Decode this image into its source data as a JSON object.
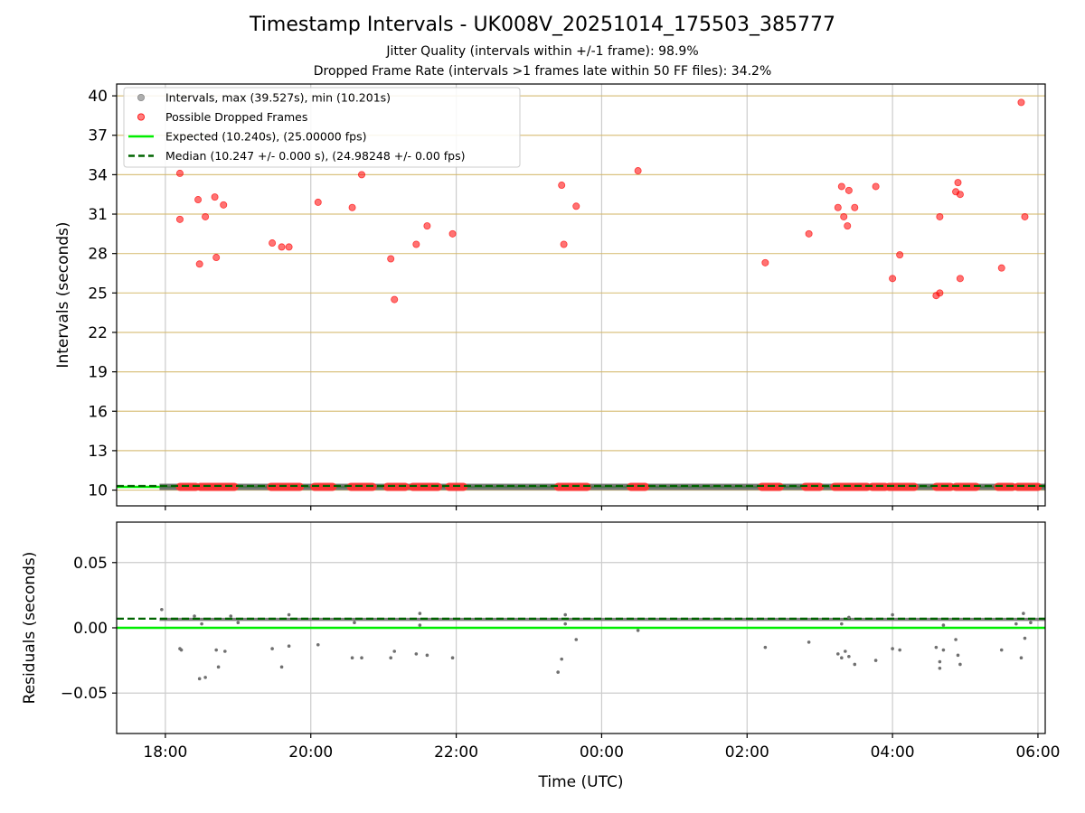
{
  "chart_data": {
    "title": "Timestamp Intervals - UK008V_20251014_175503_385777",
    "subtitle_1": "Jitter Quality (intervals within +/-1 frame): 98.9%",
    "subtitle_2": "Dropped Frame Rate (intervals >1 frames late within 50 FF files): 34.2%",
    "xlabel": "Time (UTC)",
    "x_ticks": [
      "18:00",
      "20:00",
      "22:00",
      "00:00",
      "02:00",
      "04:00",
      "06:00"
    ],
    "x_tick_hours": [
      0,
      2,
      4,
      6,
      8,
      10,
      12
    ],
    "x_range_hours": [
      -0.67,
      12.1
    ],
    "panels": [
      {
        "type": "scatter",
        "ylabel": "Intervals (seconds)",
        "ylim": [
          8.8,
          40.9
        ],
        "y_ticks": [
          10,
          13,
          16,
          19,
          22,
          25,
          28,
          31,
          34,
          37,
          40
        ],
        "legend": {
          "position": "upper-left",
          "entries": [
            {
              "label": "Intervals, max (39.527s), min (10.201s)",
              "marker": "circle",
              "color": "#808080"
            },
            {
              "label": "Possible Dropped Frames",
              "marker": "circle",
              "color": "#ff0000"
            },
            {
              "label": "Expected (10.240s), (25.00000 fps)",
              "line": "solid",
              "color": "#00ee00"
            },
            {
              "label": "Median (10.247 +/- 0.000 s), (24.98248 +/- 0.00 fps)",
              "line": "dashed",
              "color": "#006400"
            }
          ]
        },
        "series": [
          {
            "name": "Expected",
            "type": "hline",
            "value": 10.24,
            "color": "#00ee00"
          },
          {
            "name": "Median",
            "type": "hline",
            "value": 10.247,
            "color": "#006400"
          },
          {
            "name": "Intervals",
            "type": "band",
            "value": 10.247,
            "x_range": [
              -0.08,
              12.1
            ],
            "color": "#606060"
          },
          {
            "name": "Possible Dropped Frames",
            "type": "scatter",
            "color": "#ff0000",
            "points": [
              [
                0.2,
                30.6
              ],
              [
                0.2,
                34.1
              ],
              [
                0.45,
                32.1
              ],
              [
                0.47,
                27.2
              ],
              [
                0.55,
                30.8
              ],
              [
                0.68,
                32.3
              ],
              [
                0.7,
                27.7
              ],
              [
                0.8,
                31.7
              ],
              [
                1.47,
                28.8
              ],
              [
                1.6,
                28.5
              ],
              [
                1.7,
                28.5
              ],
              [
                2.1,
                31.9
              ],
              [
                2.57,
                31.5
              ],
              [
                2.7,
                34.0
              ],
              [
                3.1,
                27.6
              ],
              [
                3.15,
                24.5
              ],
              [
                3.45,
                28.7
              ],
              [
                3.6,
                30.1
              ],
              [
                3.95,
                29.5
              ],
              [
                5.45,
                33.2
              ],
              [
                5.48,
                28.7
              ],
              [
                5.65,
                31.6
              ],
              [
                6.5,
                34.3
              ],
              [
                8.25,
                27.3
              ],
              [
                8.85,
                29.5
              ],
              [
                9.25,
                31.5
              ],
              [
                9.3,
                33.1
              ],
              [
                9.33,
                30.8
              ],
              [
                9.38,
                30.1
              ],
              [
                9.4,
                32.8
              ],
              [
                9.48,
                31.5
              ],
              [
                9.77,
                33.1
              ],
              [
                10.0,
                26.1
              ],
              [
                10.1,
                27.9
              ],
              [
                10.6,
                24.8
              ],
              [
                10.65,
                30.8
              ],
              [
                10.65,
                25.0
              ],
              [
                10.87,
                32.7
              ],
              [
                10.9,
                33.4
              ],
              [
                10.93,
                32.5
              ],
              [
                10.93,
                26.1
              ],
              [
                11.5,
                26.9
              ],
              [
                11.77,
                39.5
              ],
              [
                11.82,
                30.8
              ]
            ],
            "baseline_clusters": [
              [
                0.2,
                0.42
              ],
              [
                0.48,
                0.95
              ],
              [
                1.45,
                1.85
              ],
              [
                2.05,
                2.3
              ],
              [
                2.55,
                2.85
              ],
              [
                3.05,
                3.3
              ],
              [
                3.4,
                3.75
              ],
              [
                3.9,
                4.1
              ],
              [
                5.4,
                5.8
              ],
              [
                6.4,
                6.6
              ],
              [
                8.2,
                8.45
              ],
              [
                8.8,
                9.0
              ],
              [
                9.2,
                9.65
              ],
              [
                9.72,
                9.9
              ],
              [
                9.95,
                10.3
              ],
              [
                10.6,
                10.8
              ],
              [
                10.87,
                11.15
              ],
              [
                11.45,
                11.65
              ],
              [
                11.72,
                12.0
              ]
            ]
          }
        ]
      },
      {
        "type": "scatter",
        "ylabel": "Residuals (seconds)",
        "ylim": [
          -0.081,
          0.081
        ],
        "y_ticks": [
          "0.05",
          "0.00",
          "−0.05"
        ],
        "y_tick_values": [
          0.05,
          0.0,
          -0.05
        ],
        "series": [
          {
            "name": "Expected",
            "type": "hline",
            "value": 0.0,
            "color": "#00ee00"
          },
          {
            "name": "Median",
            "type": "hline",
            "value": 0.007,
            "color": "#006400"
          },
          {
            "name": "Residual band",
            "type": "band",
            "value": 0.0065,
            "x_range": [
              -0.08,
              12.1
            ],
            "color": "#707070"
          },
          {
            "name": "Residuals",
            "type": "scatter",
            "color": "#707070",
            "points": [
              [
                -0.05,
                0.014
              ],
              [
                0.2,
                -0.016
              ],
              [
                0.22,
                -0.017
              ],
              [
                0.47,
                -0.039
              ],
              [
                0.55,
                -0.038
              ],
              [
                0.7,
                -0.017
              ],
              [
                0.73,
                -0.03
              ],
              [
                0.82,
                -0.018
              ],
              [
                1.47,
                -0.016
              ],
              [
                1.6,
                -0.03
              ],
              [
                1.7,
                -0.014
              ],
              [
                2.1,
                -0.013
              ],
              [
                2.57,
                -0.023
              ],
              [
                2.7,
                -0.023
              ],
              [
                3.1,
                -0.023
              ],
              [
                3.15,
                -0.018
              ],
              [
                3.45,
                -0.02
              ],
              [
                3.6,
                -0.021
              ],
              [
                3.95,
                -0.023
              ],
              [
                5.4,
                -0.034
              ],
              [
                5.45,
                -0.024
              ],
              [
                5.65,
                -0.009
              ],
              [
                6.5,
                -0.002
              ],
              [
                8.25,
                -0.015
              ],
              [
                8.85,
                -0.011
              ],
              [
                9.25,
                -0.02
              ],
              [
                9.3,
                -0.023
              ],
              [
                9.35,
                -0.018
              ],
              [
                9.4,
                -0.022
              ],
              [
                9.48,
                -0.028
              ],
              [
                9.77,
                -0.025
              ],
              [
                10.0,
                -0.016
              ],
              [
                10.1,
                -0.017
              ],
              [
                10.6,
                -0.015
              ],
              [
                10.65,
                -0.026
              ],
              [
                10.65,
                -0.031
              ],
              [
                10.7,
                -0.017
              ],
              [
                10.87,
                -0.009
              ],
              [
                10.9,
                -0.021
              ],
              [
                10.93,
                -0.028
              ],
              [
                11.5,
                -0.017
              ],
              [
                11.77,
                -0.023
              ],
              [
                11.82,
                -0.008
              ],
              [
                0.4,
                0.009
              ],
              [
                0.9,
                0.009
              ],
              [
                1.7,
                0.01
              ],
              [
                3.5,
                0.011
              ],
              [
                5.5,
                0.01
              ],
              [
                9.4,
                0.008
              ],
              [
                10.0,
                0.01
              ],
              [
                11.8,
                0.011
              ],
              [
                0.5,
                0.003
              ],
              [
                1.0,
                0.004
              ],
              [
                2.6,
                0.004
              ],
              [
                3.5,
                0.002
              ],
              [
                5.5,
                0.003
              ],
              [
                9.3,
                0.003
              ],
              [
                10.7,
                0.002
              ],
              [
                11.7,
                0.003
              ],
              [
                11.9,
                0.004
              ]
            ]
          }
        ]
      }
    ]
  }
}
